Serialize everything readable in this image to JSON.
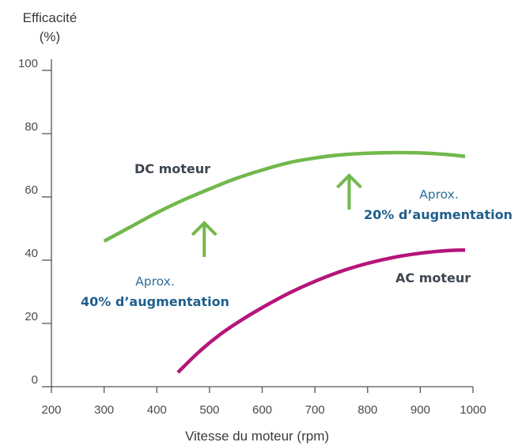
{
  "chart_data": {
    "type": "line",
    "ylabel_line1": "Efficacité",
    "ylabel_line2": "(%)",
    "xlabel": "Vitesse du moteur (rpm)",
    "xlim": [
      200,
      1000
    ],
    "ylim": [
      0,
      100
    ],
    "x_ticks": [
      "200",
      "300",
      "400",
      "500",
      "600",
      "700",
      "800",
      "900",
      "1000"
    ],
    "y_ticks": [
      "0",
      "20",
      "40",
      "60",
      "80",
      "100"
    ],
    "series": [
      {
        "name": "DC moteur",
        "color": "#72b84c",
        "x": [
          300,
          350,
          400,
          450,
          500,
          550,
          600,
          650,
          700,
          750,
          800,
          850,
          900,
          950,
          985
        ],
        "y": [
          46.0,
          50.5,
          55.0,
          59.0,
          62.5,
          65.8,
          68.5,
          70.8,
          72.3,
          73.3,
          73.8,
          74.0,
          73.9,
          73.4,
          72.8
        ]
      },
      {
        "name": "AC moteur",
        "color": "#b5157a",
        "x": [
          440,
          480,
          520,
          560,
          600,
          650,
          700,
          750,
          800,
          850,
          900,
          950,
          985
        ],
        "y": [
          4.5,
          11.0,
          16.5,
          21.0,
          25.0,
          29.5,
          33.3,
          36.5,
          39.0,
          40.9,
          42.2,
          43.0,
          43.2
        ]
      }
    ],
    "annotations": [
      {
        "light": "Aprox.",
        "bold": "40% d’augmentation",
        "arrow_x": 490,
        "arrow_y_from": 41,
        "arrow_y_to": 52
      },
      {
        "light": "Aprox.",
        "bold": "20% d’augmentation",
        "arrow_x": 765,
        "arrow_y_from": 56,
        "arrow_y_to": 67
      }
    ],
    "arrow_color": "#72b84c",
    "grid": false,
    "legend": "none"
  }
}
